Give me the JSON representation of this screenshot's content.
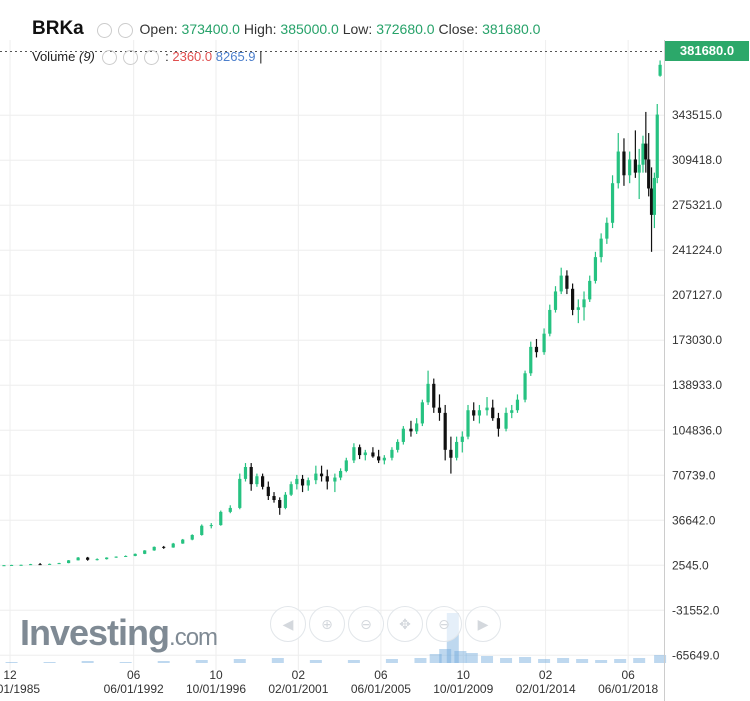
{
  "header": {
    "symbol": "BRKa",
    "open_label": "Open:",
    "open_value": "373400.0",
    "high_label": "High:",
    "high_value": "385000.0",
    "low_label": "Low:",
    "low_value": "372680.0",
    "close_label": "Close:",
    "close_value": "381680.0"
  },
  "volume_legend": {
    "label": "Volume",
    "period": "(9)",
    "value1": "2360.0",
    "value2": "8265.9",
    "cursor": "|"
  },
  "last_price_tag": "381680.0",
  "logo": {
    "main": "Investing",
    "suffix": ".com"
  },
  "nav_icons": [
    "scroll-left-icon",
    "zoom-in-icon",
    "zoom-out-icon",
    "reset-icon",
    "zoom-out-alt-icon",
    "scroll-right-icon"
  ],
  "colors": {
    "up": "#26c281",
    "down": "#111111",
    "last_tag": "#2ca86a",
    "volume": "#6fa8dc"
  },
  "chart_data": {
    "type": "candlestick",
    "symbol": "BRKa",
    "ohlc_last": {
      "open": 373400.0,
      "high": 385000.0,
      "low": 372680.0,
      "close": 381680.0
    },
    "y_ticks": [
      "343515.0",
      "309418.0",
      "275321.0",
      "241224.0",
      "207127.0",
      "173030.0",
      "138933.0",
      "104836.0",
      "70739.0",
      "36642.0",
      "2545.0",
      "-31552.0",
      "-65649.0"
    ],
    "x_ticks": [
      {
        "top": "12",
        "bottom": "12/01/1985",
        "t": 1985.92
      },
      {
        "top": "06",
        "bottom": "06/01/1992",
        "t": 1992.42
      },
      {
        "top": "10",
        "bottom": "10/01/1996",
        "t": 1996.75
      },
      {
        "top": "02",
        "bottom": "02/01/2001",
        "t": 2001.08
      },
      {
        "top": "06",
        "bottom": "06/01/2005",
        "t": 2005.42
      },
      {
        "top": "10",
        "bottom": "10/01/2009",
        "t": 2009.75
      },
      {
        "top": "02",
        "bottom": "02/01/2014",
        "t": 2014.08
      },
      {
        "top": "06",
        "bottom": "06/01/2018",
        "t": 2018.42
      }
    ],
    "ylim": [
      -73000,
      402000
    ],
    "xlim": [
      1985.55,
      2020.2
    ],
    "series": [
      {
        "t": 1985.6,
        "o": 2500,
        "h": 2700,
        "l": 2400,
        "c": 2600
      },
      {
        "t": 1986.0,
        "o": 2600,
        "h": 2900,
        "l": 2500,
        "c": 2800
      },
      {
        "t": 1986.5,
        "o": 2800,
        "h": 3000,
        "l": 2700,
        "c": 2900
      },
      {
        "t": 1987.0,
        "o": 2900,
        "h": 3600,
        "l": 2800,
        "c": 3400
      },
      {
        "t": 1987.5,
        "o": 3400,
        "h": 4300,
        "l": 3000,
        "c": 3200
      },
      {
        "t": 1988.0,
        "o": 3200,
        "h": 3800,
        "l": 3000,
        "c": 3600
      },
      {
        "t": 1988.5,
        "o": 3600,
        "h": 4400,
        "l": 3500,
        "c": 4200
      },
      {
        "t": 1989.0,
        "o": 4200,
        "h": 6500,
        "l": 4100,
        "c": 6300
      },
      {
        "t": 1989.5,
        "o": 6300,
        "h": 8800,
        "l": 6200,
        "c": 8400
      },
      {
        "t": 1990.0,
        "o": 8400,
        "h": 8900,
        "l": 6000,
        "c": 6700
      },
      {
        "t": 1990.5,
        "o": 6700,
        "h": 7800,
        "l": 6200,
        "c": 7200
      },
      {
        "t": 1991.0,
        "o": 7200,
        "h": 8600,
        "l": 6900,
        "c": 8400
      },
      {
        "t": 1991.5,
        "o": 8400,
        "h": 9300,
        "l": 8200,
        "c": 9100
      },
      {
        "t": 1992.0,
        "o": 9100,
        "h": 10000,
        "l": 8800,
        "c": 9600
      },
      {
        "t": 1992.5,
        "o": 9600,
        "h": 11500,
        "l": 9400,
        "c": 11200
      },
      {
        "t": 1993.0,
        "o": 11200,
        "h": 14000,
        "l": 11000,
        "c": 13800
      },
      {
        "t": 1993.5,
        "o": 13800,
        "h": 16800,
        "l": 13500,
        "c": 16500
      },
      {
        "t": 1994.0,
        "o": 16500,
        "h": 17200,
        "l": 15000,
        "c": 16000
      },
      {
        "t": 1994.5,
        "o": 16000,
        "h": 19500,
        "l": 15800,
        "c": 19000
      },
      {
        "t": 1995.0,
        "o": 19000,
        "h": 22500,
        "l": 18800,
        "c": 22000
      },
      {
        "t": 1995.5,
        "o": 22000,
        "h": 26000,
        "l": 21500,
        "c": 25500
      },
      {
        "t": 1996.0,
        "o": 25500,
        "h": 33500,
        "l": 25000,
        "c": 32500
      },
      {
        "t": 1996.5,
        "o": 32500,
        "h": 34500,
        "l": 30500,
        "c": 33000
      },
      {
        "t": 1997.0,
        "o": 33000,
        "h": 44000,
        "l": 32500,
        "c": 43000
      },
      {
        "t": 1997.5,
        "o": 43000,
        "h": 48000,
        "l": 42000,
        "c": 46000
      },
      {
        "t": 1998.0,
        "o": 46000,
        "h": 72000,
        "l": 45000,
        "c": 68000
      },
      {
        "t": 1998.3,
        "o": 68000,
        "h": 80000,
        "l": 66000,
        "c": 77000
      },
      {
        "t": 1998.6,
        "o": 77000,
        "h": 80000,
        "l": 59000,
        "c": 64000
      },
      {
        "t": 1998.9,
        "o": 64000,
        "h": 72000,
        "l": 62000,
        "c": 70000
      },
      {
        "t": 1999.2,
        "o": 70000,
        "h": 72000,
        "l": 60000,
        "c": 62000
      },
      {
        "t": 1999.5,
        "o": 62000,
        "h": 66000,
        "l": 52000,
        "c": 55000
      },
      {
        "t": 1999.8,
        "o": 55000,
        "h": 58000,
        "l": 50000,
        "c": 52000
      },
      {
        "t": 2000.1,
        "o": 52000,
        "h": 54000,
        "l": 40800,
        "c": 46000
      },
      {
        "t": 2000.4,
        "o": 46000,
        "h": 58000,
        "l": 45000,
        "c": 56000
      },
      {
        "t": 2000.7,
        "o": 56000,
        "h": 66000,
        "l": 55000,
        "c": 64000
      },
      {
        "t": 2001.0,
        "o": 64000,
        "h": 71000,
        "l": 60000,
        "c": 68000
      },
      {
        "t": 2001.3,
        "o": 68000,
        "h": 71000,
        "l": 58000,
        "c": 63000
      },
      {
        "t": 2001.6,
        "o": 63000,
        "h": 69000,
        "l": 59000,
        "c": 67000
      },
      {
        "t": 2002.0,
        "o": 67000,
        "h": 78000,
        "l": 64000,
        "c": 72000
      },
      {
        "t": 2002.3,
        "o": 72000,
        "h": 78000,
        "l": 66000,
        "c": 70000
      },
      {
        "t": 2002.6,
        "o": 70000,
        "h": 75000,
        "l": 60000,
        "c": 66000
      },
      {
        "t": 2003.0,
        "o": 66000,
        "h": 72000,
        "l": 58000,
        "c": 69000
      },
      {
        "t": 2003.3,
        "o": 69000,
        "h": 76000,
        "l": 67000,
        "c": 74000
      },
      {
        "t": 2003.6,
        "o": 74000,
        "h": 84000,
        "l": 73000,
        "c": 82000
      },
      {
        "t": 2004.0,
        "o": 82000,
        "h": 95000,
        "l": 80000,
        "c": 92000
      },
      {
        "t": 2004.3,
        "o": 92000,
        "h": 94000,
        "l": 83000,
        "c": 86000
      },
      {
        "t": 2004.6,
        "o": 86000,
        "h": 90000,
        "l": 82000,
        "c": 88000
      },
      {
        "t": 2005.0,
        "o": 88000,
        "h": 92000,
        "l": 84000,
        "c": 85000
      },
      {
        "t": 2005.3,
        "o": 85000,
        "h": 90000,
        "l": 80000,
        "c": 82000
      },
      {
        "t": 2005.6,
        "o": 82000,
        "h": 86000,
        "l": 79000,
        "c": 84000
      },
      {
        "t": 2006.0,
        "o": 84000,
        "h": 92000,
        "l": 82000,
        "c": 90000
      },
      {
        "t": 2006.3,
        "o": 90000,
        "h": 98000,
        "l": 88000,
        "c": 96000
      },
      {
        "t": 2006.6,
        "o": 96000,
        "h": 108000,
        "l": 94000,
        "c": 106000
      },
      {
        "t": 2007.0,
        "o": 106000,
        "h": 112000,
        "l": 100000,
        "c": 104000
      },
      {
        "t": 2007.3,
        "o": 104000,
        "h": 114000,
        "l": 102000,
        "c": 110000
      },
      {
        "t": 2007.6,
        "o": 110000,
        "h": 128000,
        "l": 108000,
        "c": 126000
      },
      {
        "t": 2007.9,
        "o": 126000,
        "h": 150000,
        "l": 124000,
        "c": 140000
      },
      {
        "t": 2008.2,
        "o": 140000,
        "h": 144000,
        "l": 118000,
        "c": 122000
      },
      {
        "t": 2008.5,
        "o": 122000,
        "h": 132000,
        "l": 112000,
        "c": 118000
      },
      {
        "t": 2008.8,
        "o": 118000,
        "h": 124000,
        "l": 82000,
        "c": 90000
      },
      {
        "t": 2009.1,
        "o": 90000,
        "h": 100000,
        "l": 72000,
        "c": 84000
      },
      {
        "t": 2009.4,
        "o": 84000,
        "h": 100000,
        "l": 82000,
        "c": 96000
      },
      {
        "t": 2009.7,
        "o": 96000,
        "h": 104000,
        "l": 88000,
        "c": 100000
      },
      {
        "t": 2010.0,
        "o": 100000,
        "h": 124000,
        "l": 98000,
        "c": 120000
      },
      {
        "t": 2010.3,
        "o": 120000,
        "h": 126000,
        "l": 112000,
        "c": 116000
      },
      {
        "t": 2010.6,
        "o": 116000,
        "h": 124000,
        "l": 110000,
        "c": 120000
      },
      {
        "t": 2011.0,
        "o": 120000,
        "h": 130000,
        "l": 116000,
        "c": 122000
      },
      {
        "t": 2011.3,
        "o": 122000,
        "h": 128000,
        "l": 112000,
        "c": 114000
      },
      {
        "t": 2011.6,
        "o": 114000,
        "h": 118000,
        "l": 100000,
        "c": 106000
      },
      {
        "t": 2012.0,
        "o": 106000,
        "h": 122000,
        "l": 104000,
        "c": 118000
      },
      {
        "t": 2012.3,
        "o": 118000,
        "h": 124000,
        "l": 114000,
        "c": 120000
      },
      {
        "t": 2012.6,
        "o": 120000,
        "h": 132000,
        "l": 118000,
        "c": 128000
      },
      {
        "t": 2013.0,
        "o": 128000,
        "h": 150000,
        "l": 126000,
        "c": 148000
      },
      {
        "t": 2013.3,
        "o": 148000,
        "h": 172000,
        "l": 146000,
        "c": 168000
      },
      {
        "t": 2013.6,
        "o": 168000,
        "h": 174000,
        "l": 160000,
        "c": 164000
      },
      {
        "t": 2014.0,
        "o": 164000,
        "h": 182000,
        "l": 162000,
        "c": 178000
      },
      {
        "t": 2014.3,
        "o": 178000,
        "h": 200000,
        "l": 176000,
        "c": 196000
      },
      {
        "t": 2014.6,
        "o": 196000,
        "h": 214000,
        "l": 194000,
        "c": 210000
      },
      {
        "t": 2014.9,
        "o": 210000,
        "h": 228000,
        "l": 208000,
        "c": 222000
      },
      {
        "t": 2015.2,
        "o": 222000,
        "h": 226000,
        "l": 208000,
        "c": 212000
      },
      {
        "t": 2015.5,
        "o": 212000,
        "h": 216000,
        "l": 192000,
        "c": 196000
      },
      {
        "t": 2015.8,
        "o": 196000,
        "h": 204000,
        "l": 186000,
        "c": 198000
      },
      {
        "t": 2016.1,
        "o": 198000,
        "h": 210000,
        "l": 188000,
        "c": 204000
      },
      {
        "t": 2016.4,
        "o": 204000,
        "h": 222000,
        "l": 202000,
        "c": 218000
      },
      {
        "t": 2016.7,
        "o": 218000,
        "h": 240000,
        "l": 216000,
        "c": 236000
      },
      {
        "t": 2017.0,
        "o": 236000,
        "h": 254000,
        "l": 232000,
        "c": 250000
      },
      {
        "t": 2017.3,
        "o": 250000,
        "h": 266000,
        "l": 246000,
        "c": 262000
      },
      {
        "t": 2017.6,
        "o": 262000,
        "h": 298000,
        "l": 258000,
        "c": 292000
      },
      {
        "t": 2017.9,
        "o": 292000,
        "h": 330000,
        "l": 288000,
        "c": 316000
      },
      {
        "t": 2018.2,
        "o": 316000,
        "h": 326000,
        "l": 290000,
        "c": 298000
      },
      {
        "t": 2018.5,
        "o": 298000,
        "h": 316000,
        "l": 292000,
        "c": 310000
      },
      {
        "t": 2018.8,
        "o": 310000,
        "h": 332000,
        "l": 296000,
        "c": 300000
      },
      {
        "t": 2019.0,
        "o": 300000,
        "h": 318000,
        "l": 280000,
        "c": 306000
      },
      {
        "t": 2019.2,
        "o": 306000,
        "h": 328000,
        "l": 300000,
        "c": 322000
      },
      {
        "t": 2019.35,
        "o": 322000,
        "h": 346000,
        "l": 300000,
        "c": 310000
      },
      {
        "t": 2019.5,
        "o": 310000,
        "h": 330000,
        "l": 282000,
        "c": 288000
      },
      {
        "t": 2019.65,
        "o": 288000,
        "h": 304000,
        "l": 240000,
        "c": 268000
      },
      {
        "t": 2019.8,
        "o": 268000,
        "h": 300000,
        "l": 258000,
        "c": 296000
      },
      {
        "t": 2019.95,
        "o": 296000,
        "h": 352000,
        "l": 292000,
        "c": 344000
      },
      {
        "t": 2020.1,
        "o": 373400,
        "h": 385000,
        "l": 372680,
        "c": 381680
      }
    ],
    "volume": [
      {
        "t": 1986,
        "v": 1
      },
      {
        "t": 1988,
        "v": 1
      },
      {
        "t": 1990,
        "v": 2
      },
      {
        "t": 1992,
        "v": 1
      },
      {
        "t": 1994,
        "v": 2
      },
      {
        "t": 1996,
        "v": 3
      },
      {
        "t": 1998,
        "v": 4
      },
      {
        "t": 2000,
        "v": 5
      },
      {
        "t": 2002,
        "v": 3
      },
      {
        "t": 2004,
        "v": 3
      },
      {
        "t": 2006,
        "v": 4
      },
      {
        "t": 2007.5,
        "v": 5
      },
      {
        "t": 2008.3,
        "v": 9
      },
      {
        "t": 2008.8,
        "v": 14
      },
      {
        "t": 2009.2,
        "v": 50
      },
      {
        "t": 2009.6,
        "v": 12
      },
      {
        "t": 2010.2,
        "v": 10
      },
      {
        "t": 2011,
        "v": 7
      },
      {
        "t": 2012,
        "v": 5
      },
      {
        "t": 2013,
        "v": 6
      },
      {
        "t": 2014,
        "v": 4
      },
      {
        "t": 2015,
        "v": 5
      },
      {
        "t": 2016,
        "v": 4
      },
      {
        "t": 2017,
        "v": 3
      },
      {
        "t": 2018,
        "v": 4
      },
      {
        "t": 2019,
        "v": 5
      },
      {
        "t": 2020.1,
        "v": 8
      }
    ]
  }
}
